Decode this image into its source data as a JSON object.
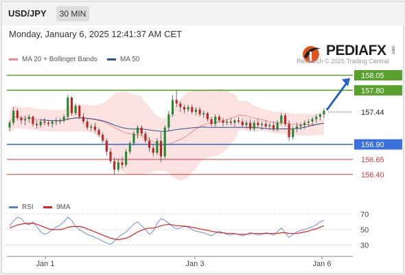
{
  "header": {
    "symbol": "USD/JPY",
    "timeframe": "30 MIN",
    "datetime": "Monday, January 6, 2025 12:41:37 AM CET"
  },
  "legend": {
    "ma20_label": "MA 20 + Bollinger Bands",
    "ma20_color": "#f08a8a",
    "ma50_label": "MA 50",
    "ma50_color": "#2a4f8f"
  },
  "branding": {
    "logo_text": "PEDIAFX",
    "logo_suffix": ".com",
    "copyright": "Research © 2025 Trading Central"
  },
  "rsi_legend": {
    "rsi_label": "RSI",
    "rsi_color": "#5b7fd6",
    "ma_label": "9MA",
    "ma_color": "#e02020"
  },
  "chart_data": [
    {
      "type": "candlestick",
      "title": "",
      "x_ticks": [
        "Jan 1",
        "Jan 3",
        "Jan 6"
      ],
      "ylim": [
        156.1,
        158.25
      ],
      "levels": [
        {
          "label": "158.05",
          "value": 158.05,
          "style": "resistance",
          "color": "#5aa02c"
        },
        {
          "label": "157.80",
          "value": 157.8,
          "style": "resistance",
          "color": "#5aa02c"
        },
        {
          "label": "157.44",
          "value": 157.44,
          "style": "current-price",
          "color": "#333333"
        },
        {
          "label": "156.90",
          "value": 156.9,
          "style": "pivot",
          "color": "#3a6fe0"
        },
        {
          "label": "156.65",
          "value": 156.65,
          "style": "support",
          "color": "#d33a3a"
        },
        {
          "label": "156.40",
          "value": 156.4,
          "style": "support",
          "color": "#d33a3a"
        }
      ],
      "candles_ohlc": [
        [
          157.18,
          157.3,
          157.12,
          157.26
        ],
        [
          157.26,
          157.52,
          157.22,
          157.46
        ],
        [
          157.46,
          157.5,
          157.3,
          157.34
        ],
        [
          157.34,
          157.38,
          157.24,
          157.3
        ],
        [
          157.3,
          157.38,
          157.22,
          157.32
        ],
        [
          157.32,
          157.4,
          157.26,
          157.36
        ],
        [
          157.36,
          157.38,
          157.2,
          157.24
        ],
        [
          157.24,
          157.3,
          157.16,
          157.22
        ],
        [
          157.22,
          157.32,
          157.18,
          157.28
        ],
        [
          157.28,
          157.34,
          157.22,
          157.26
        ],
        [
          157.26,
          157.3,
          157.2,
          157.24
        ],
        [
          157.24,
          157.3,
          157.18,
          157.28
        ],
        [
          157.28,
          157.34,
          157.22,
          157.28
        ],
        [
          157.28,
          157.34,
          157.24,
          157.3
        ],
        [
          157.3,
          157.4,
          157.26,
          157.36
        ],
        [
          157.36,
          157.72,
          157.3,
          157.68
        ],
        [
          157.68,
          157.7,
          157.38,
          157.42
        ],
        [
          157.42,
          157.58,
          157.38,
          157.54
        ],
        [
          157.54,
          157.56,
          157.32,
          157.36
        ],
        [
          157.36,
          157.42,
          157.24,
          157.28
        ],
        [
          157.28,
          157.32,
          157.14,
          157.18
        ],
        [
          157.18,
          157.24,
          157.12,
          157.2
        ],
        [
          157.2,
          157.26,
          157.1,
          157.14
        ],
        [
          157.14,
          157.18,
          157.02,
          157.06
        ],
        [
          157.06,
          157.1,
          156.92,
          156.96
        ],
        [
          156.96,
          157.0,
          156.72,
          156.78
        ],
        [
          156.78,
          156.84,
          156.58,
          156.62
        ],
        [
          156.62,
          156.68,
          156.4,
          156.48
        ],
        [
          156.48,
          156.66,
          156.44,
          156.6
        ],
        [
          156.6,
          156.7,
          156.5,
          156.56
        ],
        [
          156.56,
          156.82,
          156.52,
          156.78
        ],
        [
          156.78,
          156.96,
          156.74,
          156.92
        ],
        [
          156.92,
          157.12,
          156.88,
          157.08
        ],
        [
          157.08,
          157.22,
          157.0,
          157.18
        ],
        [
          157.18,
          157.22,
          157.04,
          157.08
        ],
        [
          157.08,
          157.12,
          156.92,
          156.96
        ],
        [
          156.96,
          157.02,
          156.78,
          156.84
        ],
        [
          156.84,
          156.9,
          156.7,
          156.76
        ],
        [
          156.76,
          157.0,
          156.72,
          156.96
        ],
        [
          156.96,
          157.1,
          156.6,
          156.7
        ],
        [
          156.7,
          157.22,
          156.66,
          157.18
        ],
        [
          157.18,
          157.46,
          157.12,
          157.4
        ],
        [
          157.4,
          157.72,
          157.36,
          157.64
        ],
        [
          157.64,
          157.8,
          157.52,
          157.58
        ],
        [
          157.58,
          157.62,
          157.44,
          157.52
        ],
        [
          157.52,
          157.56,
          157.42,
          157.48
        ],
        [
          157.48,
          157.56,
          157.44,
          157.52
        ],
        [
          157.52,
          157.56,
          157.4,
          157.44
        ],
        [
          157.44,
          157.52,
          157.38,
          157.48
        ],
        [
          157.48,
          157.52,
          157.36,
          157.4
        ],
        [
          157.4,
          157.46,
          157.34,
          157.42
        ],
        [
          157.42,
          157.44,
          157.28,
          157.32
        ],
        [
          157.32,
          157.36,
          157.2,
          157.24
        ],
        [
          157.24,
          157.4,
          157.2,
          157.36
        ],
        [
          157.36,
          157.4,
          157.26,
          157.3
        ],
        [
          157.3,
          157.34,
          157.2,
          157.26
        ],
        [
          157.26,
          157.32,
          157.22,
          157.28
        ],
        [
          157.28,
          157.34,
          157.22,
          157.26
        ],
        [
          157.26,
          157.32,
          157.2,
          157.3
        ],
        [
          157.3,
          157.36,
          157.24,
          157.28
        ],
        [
          157.28,
          157.32,
          157.18,
          157.22
        ],
        [
          157.22,
          157.3,
          157.16,
          157.26
        ],
        [
          157.26,
          157.32,
          157.12,
          157.16
        ],
        [
          157.16,
          157.3,
          157.12,
          157.26
        ],
        [
          157.26,
          157.32,
          157.18,
          157.22
        ],
        [
          157.22,
          157.28,
          157.14,
          157.24
        ],
        [
          157.24,
          157.3,
          157.16,
          157.2
        ],
        [
          157.2,
          157.26,
          157.14,
          157.22
        ],
        [
          157.22,
          157.28,
          157.12,
          157.16
        ],
        [
          157.16,
          157.3,
          157.12,
          157.26
        ],
        [
          157.26,
          157.42,
          157.22,
          157.38
        ],
        [
          157.38,
          157.42,
          157.2,
          157.24
        ],
        [
          157.24,
          157.3,
          156.96,
          157.02
        ],
        [
          157.02,
          157.2,
          156.98,
          157.16
        ],
        [
          157.16,
          157.26,
          157.1,
          157.2
        ],
        [
          157.2,
          157.26,
          157.14,
          157.22
        ],
        [
          157.22,
          157.3,
          157.16,
          157.26
        ],
        [
          157.26,
          157.32,
          157.2,
          157.28
        ],
        [
          157.28,
          157.36,
          157.22,
          157.32
        ],
        [
          157.32,
          157.4,
          157.26,
          157.36
        ],
        [
          157.36,
          157.42,
          157.3,
          157.4
        ],
        [
          157.4,
          157.5,
          157.34,
          157.46
        ]
      ]
    },
    {
      "type": "line",
      "title": "",
      "ylim": [
        20,
        80
      ],
      "y_ticks": [
        30,
        50,
        70
      ],
      "series": [
        {
          "name": "RSI",
          "values": [
            55,
            61,
            66,
            64,
            58,
            56,
            60,
            54,
            47,
            44,
            46,
            50,
            53,
            56,
            60,
            66,
            62,
            54,
            50,
            47,
            44,
            42,
            40,
            38,
            35,
            33,
            31,
            35,
            40,
            44,
            47,
            52,
            57,
            60,
            55,
            50,
            44,
            48,
            58,
            64,
            62,
            58,
            54,
            51,
            52,
            55,
            53,
            50,
            48,
            47,
            46,
            44,
            42,
            45,
            48,
            46,
            44,
            43,
            45,
            44,
            42,
            44,
            46,
            45,
            43,
            44,
            46,
            45,
            43,
            47,
            52,
            46,
            40,
            44,
            47,
            49,
            50,
            52,
            54,
            56,
            60,
            62
          ]
        },
        {
          "name": "9MA",
          "values": [
            52,
            54,
            56,
            57,
            58,
            58,
            58,
            57,
            55,
            53,
            51,
            50,
            50,
            50,
            51,
            53,
            54,
            54,
            54,
            53,
            51,
            49,
            47,
            45,
            43,
            41,
            39,
            38,
            37,
            38,
            39,
            41,
            44,
            47,
            49,
            51,
            52,
            52,
            53,
            55,
            56,
            57,
            56,
            55,
            55,
            54,
            54,
            53,
            52,
            51,
            50,
            49,
            48,
            47,
            46,
            46,
            45,
            45,
            45,
            44,
            44,
            44,
            45,
            45,
            45,
            45,
            45,
            45,
            45,
            45,
            46,
            46,
            45,
            45,
            45,
            46,
            47,
            48,
            50,
            51,
            53,
            55
          ]
        }
      ]
    }
  ]
}
